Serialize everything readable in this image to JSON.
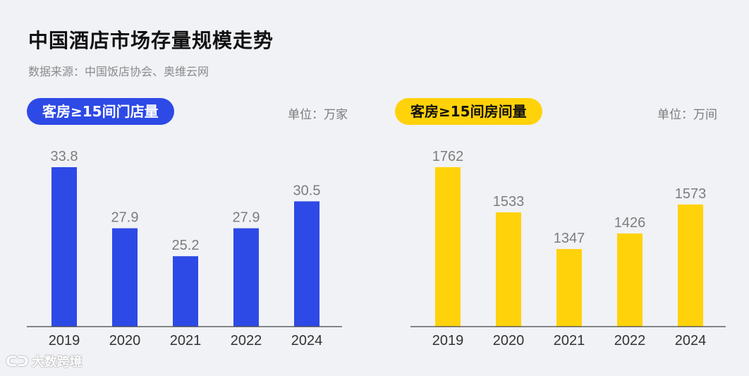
{
  "header": {
    "title": "中国酒店市场存量规模走势",
    "source": "数据来源：中国饭店协会、奥维云网"
  },
  "watermark": {
    "text": "大数跨境"
  },
  "chart_data": [
    {
      "type": "bar",
      "title": "客房≥15间门店量",
      "unit": "单位：万家",
      "categories": [
        "2019",
        "2020",
        "2021",
        "2022",
        "2024"
      ],
      "values": [
        33.8,
        27.9,
        25.2,
        27.9,
        30.5
      ],
      "value_labels": [
        "33.8",
        "27.9",
        "25.2",
        "27.9",
        "30.5"
      ],
      "color": "#2d4ae6",
      "ylim": [
        18.4,
        33.8
      ]
    },
    {
      "type": "bar",
      "title": "客房≥15间房间量",
      "unit": "单位：万间",
      "categories": [
        "2019",
        "2020",
        "2021",
        "2022",
        "2024"
      ],
      "values": [
        1762,
        1533,
        1347,
        1426,
        1573
      ],
      "value_labels": [
        "1762",
        "1533",
        "1347",
        "1426",
        "1573"
      ],
      "color": "#ffd20a",
      "ylim": [
        954,
        1762
      ]
    }
  ]
}
